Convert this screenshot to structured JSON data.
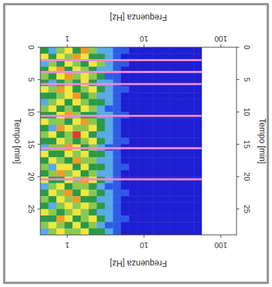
{
  "chart_data": {
    "type": "heatmap",
    "x_label": "Tempo [min]",
    "y_label": "Frequenza [Hz]",
    "x": [
      0,
      1,
      2,
      3,
      4,
      5,
      6,
      7,
      8,
      9,
      10,
      11,
      12,
      13,
      14,
      15,
      16,
      17,
      18,
      19,
      20,
      21,
      22,
      23,
      24,
      25,
      26,
      27,
      28,
      29
    ],
    "y": [
      0.447,
      0.57,
      0.724,
      0.923,
      1.175,
      1.496,
      1.905,
      2.427,
      3.09,
      3.94,
      5.01,
      6.38,
      8.13,
      10.35,
      13.18,
      16.79,
      21.4,
      27.2,
      34.7,
      44.2,
      56.2
    ],
    "z": [
      [
        3,
        2,
        4,
        5,
        3,
        6,
        4,
        2,
        2,
        1,
        1,
        0,
        0,
        0,
        0,
        0,
        0,
        0,
        0,
        0
      ],
      [
        5,
        3,
        5,
        4,
        6,
        5,
        3,
        3,
        2,
        1,
        0,
        0,
        0,
        0,
        0,
        0,
        0,
        0,
        0,
        0
      ],
      [
        2,
        4,
        3,
        5,
        4,
        3,
        5,
        4,
        2,
        1,
        1,
        0,
        0,
        0,
        0,
        0,
        0,
        0,
        0,
        0
      ],
      [
        3,
        5,
        6,
        3,
        5,
        4,
        3,
        2,
        2,
        1,
        0,
        0,
        0,
        0,
        0,
        0,
        0,
        0,
        0,
        0
      ],
      [
        4,
        3,
        5,
        6,
        4,
        5,
        4,
        3,
        1,
        1,
        0,
        0,
        0,
        0,
        0,
        0,
        0,
        0,
        0,
        0
      ],
      [
        3,
        2,
        3,
        4,
        3,
        5,
        3,
        2,
        2,
        1,
        0,
        0,
        0,
        0,
        0,
        0,
        0,
        0,
        0,
        0
      ],
      [
        5,
        4,
        6,
        5,
        3,
        4,
        5,
        3,
        2,
        1,
        1,
        0,
        0,
        0,
        0,
        0,
        0,
        0,
        0,
        0
      ],
      [
        3,
        3,
        4,
        5,
        6,
        3,
        4,
        2,
        2,
        1,
        0,
        0,
        0,
        0,
        0,
        0,
        0,
        0,
        0,
        0
      ],
      [
        2,
        4,
        5,
        3,
        5,
        4,
        3,
        3,
        2,
        1,
        0,
        0,
        0,
        0,
        0,
        0,
        0,
        0,
        0,
        0
      ],
      [
        4,
        5,
        3,
        4,
        3,
        5,
        4,
        2,
        1,
        1,
        0,
        0,
        0,
        0,
        0,
        0,
        0,
        0,
        0,
        0
      ],
      [
        3,
        3,
        5,
        6,
        4,
        3,
        3,
        2,
        2,
        1,
        1,
        0,
        0,
        0,
        0,
        0,
        0,
        0,
        0,
        0
      ],
      [
        5,
        4,
        4,
        3,
        5,
        6,
        4,
        3,
        2,
        1,
        0,
        0,
        0,
        0,
        0,
        0,
        0,
        0,
        0,
        0
      ],
      [
        3,
        2,
        6,
        5,
        4,
        4,
        5,
        3,
        2,
        1,
        0,
        0,
        0,
        0,
        0,
        0,
        0,
        0,
        0,
        0
      ],
      [
        4,
        5,
        3,
        4,
        7,
        5,
        3,
        2,
        2,
        1,
        0,
        0,
        0,
        0,
        0,
        0,
        0,
        0,
        0,
        0
      ],
      [
        3,
        3,
        5,
        4,
        3,
        4,
        5,
        3,
        2,
        1,
        1,
        0,
        0,
        0,
        0,
        0,
        0,
        0,
        0,
        0
      ],
      [
        2,
        4,
        4,
        6,
        5,
        3,
        4,
        2,
        1,
        1,
        0,
        0,
        0,
        0,
        0,
        0,
        0,
        0,
        0,
        0
      ],
      [
        5,
        3,
        3,
        5,
        4,
        5,
        3,
        3,
        2,
        1,
        0,
        0,
        0,
        0,
        0,
        0,
        0,
        0,
        0,
        0
      ],
      [
        3,
        5,
        4,
        3,
        6,
        4,
        4,
        2,
        2,
        1,
        0,
        0,
        0,
        0,
        0,
        0,
        0,
        0,
        0,
        0
      ],
      [
        4,
        2,
        5,
        5,
        3,
        5,
        3,
        3,
        2,
        1,
        1,
        0,
        0,
        0,
        0,
        0,
        0,
        0,
        0,
        0
      ],
      [
        3,
        4,
        6,
        4,
        5,
        3,
        4,
        2,
        2,
        1,
        0,
        0,
        0,
        0,
        0,
        0,
        0,
        0,
        0,
        0
      ],
      [
        5,
        3,
        3,
        5,
        4,
        6,
        5,
        3,
        2,
        1,
        0,
        0,
        0,
        0,
        0,
        0,
        0,
        0,
        0,
        0
      ],
      [
        2,
        4,
        5,
        3,
        4,
        4,
        3,
        2,
        1,
        1,
        0,
        0,
        0,
        0,
        0,
        0,
        0,
        0,
        0,
        0
      ],
      [
        3,
        5,
        4,
        6,
        3,
        5,
        4,
        3,
        2,
        1,
        1,
        0,
        0,
        0,
        0,
        0,
        0,
        0,
        0,
        0
      ],
      [
        4,
        3,
        5,
        4,
        6,
        3,
        3,
        2,
        2,
        1,
        0,
        0,
        0,
        0,
        0,
        0,
        0,
        0,
        0,
        0
      ],
      [
        3,
        2,
        4,
        5,
        4,
        5,
        4,
        3,
        2,
        1,
        0,
        0,
        0,
        0,
        0,
        0,
        0,
        0,
        0,
        0
      ],
      [
        5,
        4,
        3,
        4,
        5,
        4,
        3,
        2,
        2,
        1,
        0,
        0,
        0,
        0,
        0,
        0,
        0,
        0,
        0,
        0
      ],
      [
        3,
        3,
        6,
        5,
        3,
        4,
        5,
        3,
        2,
        1,
        1,
        0,
        0,
        0,
        0,
        0,
        0,
        0,
        0,
        0
      ],
      [
        4,
        5,
        4,
        3,
        5,
        3,
        4,
        2,
        1,
        1,
        0,
        0,
        0,
        0,
        0,
        0,
        0,
        0,
        0,
        0
      ],
      [
        2,
        4,
        5,
        4,
        4,
        5,
        3,
        3,
        2,
        1,
        0,
        0,
        0,
        0,
        0,
        0,
        0,
        0,
        0,
        0
      ]
    ],
    "zlim": [
      0,
      7
    ],
    "xlim": [
      0,
      29
    ],
    "ylim": [
      0.447,
      160
    ],
    "xticks": [
      0,
      5,
      10,
      15,
      20,
      25
    ],
    "yticks": [
      1,
      10,
      100
    ],
    "log": "y",
    "gaps": [
      2.0,
      3.8,
      5.7,
      10.6,
      15.6,
      20.4
    ]
  }
}
